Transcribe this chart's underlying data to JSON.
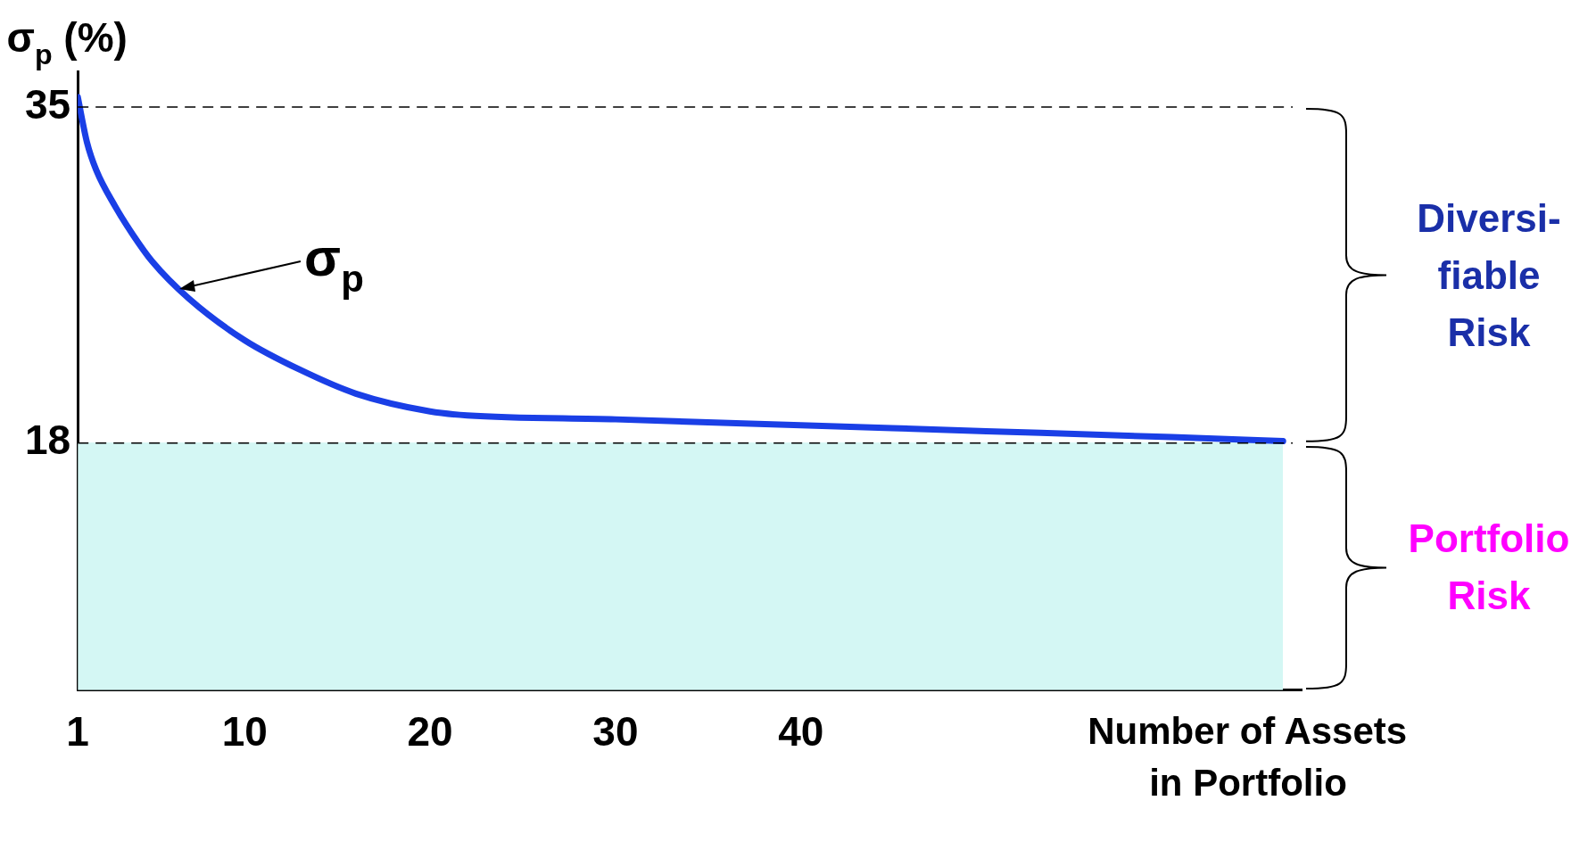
{
  "chart_data": {
    "type": "line",
    "ylabel": "σ$_{p}$ (%)",
    "xlabel": "Number of Assets\nin Portfolio",
    "xlim": [
      1,
      67
    ],
    "xticks": [
      1,
      10,
      20,
      30,
      40
    ],
    "ylim": [
      5.5,
      36.8
    ],
    "yticks": [
      18,
      35
    ],
    "grid": false,
    "legend": false,
    "marker": "none",
    "series": [
      {
        "type": "area",
        "color": "#d4f7f4",
        "x": [
          1,
          66
        ],
        "values": [
          18,
          18
        ]
      },
      {
        "color": "#1a3fe6",
        "x": [
          1,
          1.5,
          2,
          3,
          4,
          5,
          7,
          10,
          13,
          16,
          20,
          22,
          30,
          40,
          50,
          60,
          66
        ],
        "values": [
          35.5,
          33.2,
          31.8,
          30,
          28.5,
          27.2,
          25.3,
          23.2,
          21.7,
          20.5,
          19.6,
          19.4,
          19.2,
          18.9,
          18.6,
          18.3,
          18.1
        ]
      }
    ],
    "ref_lines": [
      {
        "axis": "y",
        "value": 35,
        "line_style": "dashed",
        "color": "#000000"
      },
      {
        "axis": "y",
        "value": 18,
        "line_style": "dashed",
        "color": "#000000"
      }
    ],
    "annotations": [
      {
        "text": "σ$_{p}$",
        "x": 6,
        "y": 26.3
      },
      "Diversi-\nfiable\nRisk",
      "Portfolio\nRisk"
    ]
  }
}
